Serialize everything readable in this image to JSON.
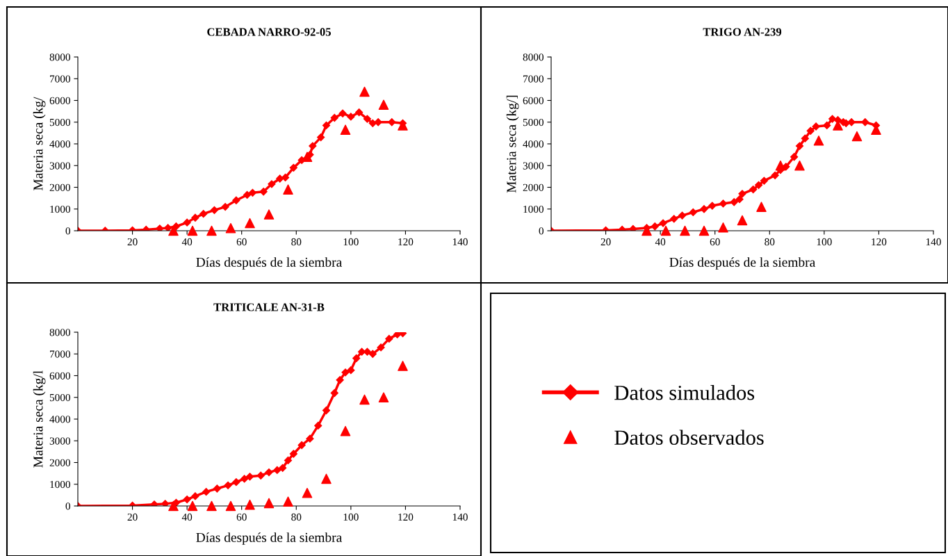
{
  "chart_data": [
    {
      "type": "line",
      "title": "CEBADA NARRO-92-05",
      "xlabel": "Días después de la siembra",
      "ylabel": "Materia seca (kg/",
      "xlim": [
        0,
        140
      ],
      "xticks": [
        20,
        40,
        60,
        80,
        100,
        120,
        140
      ],
      "ylim": [
        0,
        8000
      ],
      "yticks": [
        0,
        1000,
        2000,
        3000,
        4000,
        5000,
        6000,
        7000,
        8000
      ],
      "grid": false,
      "legend": false,
      "series": [
        {
          "marker": "diamond",
          "color": "#ff0000",
          "x": [
            0,
            10,
            20,
            25,
            30,
            33,
            36,
            40,
            43,
            46,
            50,
            54,
            58,
            62,
            64,
            68,
            71,
            74,
            76,
            79,
            82,
            85,
            86,
            89,
            91,
            94,
            97,
            100,
            103,
            106,
            108,
            110,
            115,
            119
          ],
          "values": [
            0,
            0,
            20,
            50,
            100,
            130,
            200,
            380,
            600,
            780,
            950,
            1100,
            1400,
            1650,
            1750,
            1800,
            2150,
            2400,
            2450,
            2900,
            3250,
            3500,
            3900,
            4300,
            4850,
            5200,
            5400,
            5250,
            5450,
            5150,
            4950,
            5000,
            5000,
            4950
          ]
        },
        {
          "type": "scatter",
          "marker": "triangle",
          "color": "#ff0000",
          "x": [
            35,
            42,
            49,
            56,
            63,
            70,
            77,
            84,
            98,
            105,
            112,
            119
          ],
          "values": [
            0,
            0,
            0,
            120,
            350,
            750,
            1900,
            3400,
            4650,
            6400,
            5800,
            4850
          ]
        }
      ]
    },
    {
      "type": "line",
      "title": "TRIGO AN-239",
      "xlabel": "Días después de la siembra",
      "ylabel": "Materia seca (kg/]",
      "xlim": [
        0,
        140
      ],
      "xticks": [
        20,
        40,
        60,
        80,
        100,
        120,
        140
      ],
      "ylim": [
        0,
        8000
      ],
      "yticks": [
        0,
        1000,
        2000,
        3000,
        4000,
        5000,
        6000,
        7000,
        8000
      ],
      "grid": false,
      "legend": false,
      "series": [
        {
          "marker": "diamond",
          "color": "#ff0000",
          "x": [
            0,
            20,
            26,
            30,
            35,
            38,
            41,
            45,
            48,
            52,
            56,
            59,
            63,
            67,
            69,
            70,
            74,
            76,
            78,
            82,
            84,
            86,
            89,
            91,
            93,
            95,
            97,
            101,
            103,
            105,
            107,
            108,
            110,
            115,
            119
          ],
          "values": [
            0,
            20,
            50,
            80,
            130,
            200,
            350,
            550,
            700,
            850,
            1000,
            1150,
            1250,
            1320,
            1450,
            1700,
            1900,
            2100,
            2300,
            2550,
            2800,
            2950,
            3400,
            3900,
            4250,
            4600,
            4800,
            4850,
            5150,
            5100,
            5000,
            4950,
            5000,
            5000,
            4850
          ]
        },
        {
          "type": "scatter",
          "marker": "triangle",
          "color": "#ff0000",
          "x": [
            35,
            42,
            49,
            56,
            63,
            70,
            77,
            84,
            91,
            98,
            105,
            112,
            119
          ],
          "values": [
            0,
            0,
            0,
            0,
            150,
            480,
            1100,
            3000,
            3000,
            4150,
            4850,
            4350,
            4650
          ]
        }
      ]
    },
    {
      "type": "line",
      "title": "TRITICALE AN-31-B",
      "xlabel": "Días después de la siembra",
      "ylabel": "Materia seca (kg/l",
      "xlim": [
        0,
        140
      ],
      "xticks": [
        20,
        40,
        60,
        80,
        100,
        120,
        140
      ],
      "ylim": [
        0,
        8000
      ],
      "yticks": [
        0,
        1000,
        2000,
        3000,
        4000,
        5000,
        6000,
        7000,
        8000
      ],
      "grid": false,
      "legend": "right",
      "series": [
        {
          "name": "Datos simulados",
          "marker": "diamond",
          "color": "#ff0000",
          "x": [
            0,
            20,
            28,
            32,
            36,
            40,
            43,
            47,
            51,
            55,
            58,
            61,
            63,
            67,
            70,
            73,
            75,
            77,
            79,
            82,
            85,
            88,
            91,
            94,
            96,
            98,
            100,
            102,
            104,
            106,
            108,
            111,
            114,
            117,
            119
          ],
          "values": [
            0,
            20,
            70,
            100,
            150,
            300,
            450,
            650,
            800,
            950,
            1100,
            1250,
            1350,
            1400,
            1550,
            1650,
            1750,
            2100,
            2400,
            2800,
            3100,
            3700,
            4400,
            5200,
            5800,
            6150,
            6250,
            6800,
            7100,
            7100,
            7000,
            7300,
            7700,
            7900,
            7950
          ]
        },
        {
          "name": "Datos observados",
          "type": "scatter",
          "marker": "triangle",
          "color": "#ff0000",
          "x": [
            35,
            42,
            49,
            56,
            63,
            70,
            77,
            84,
            91,
            98,
            105,
            112,
            119
          ],
          "values": [
            0,
            0,
            0,
            0,
            60,
            130,
            200,
            600,
            1250,
            3450,
            4900,
            5000,
            6450
          ]
        }
      ]
    }
  ]
}
